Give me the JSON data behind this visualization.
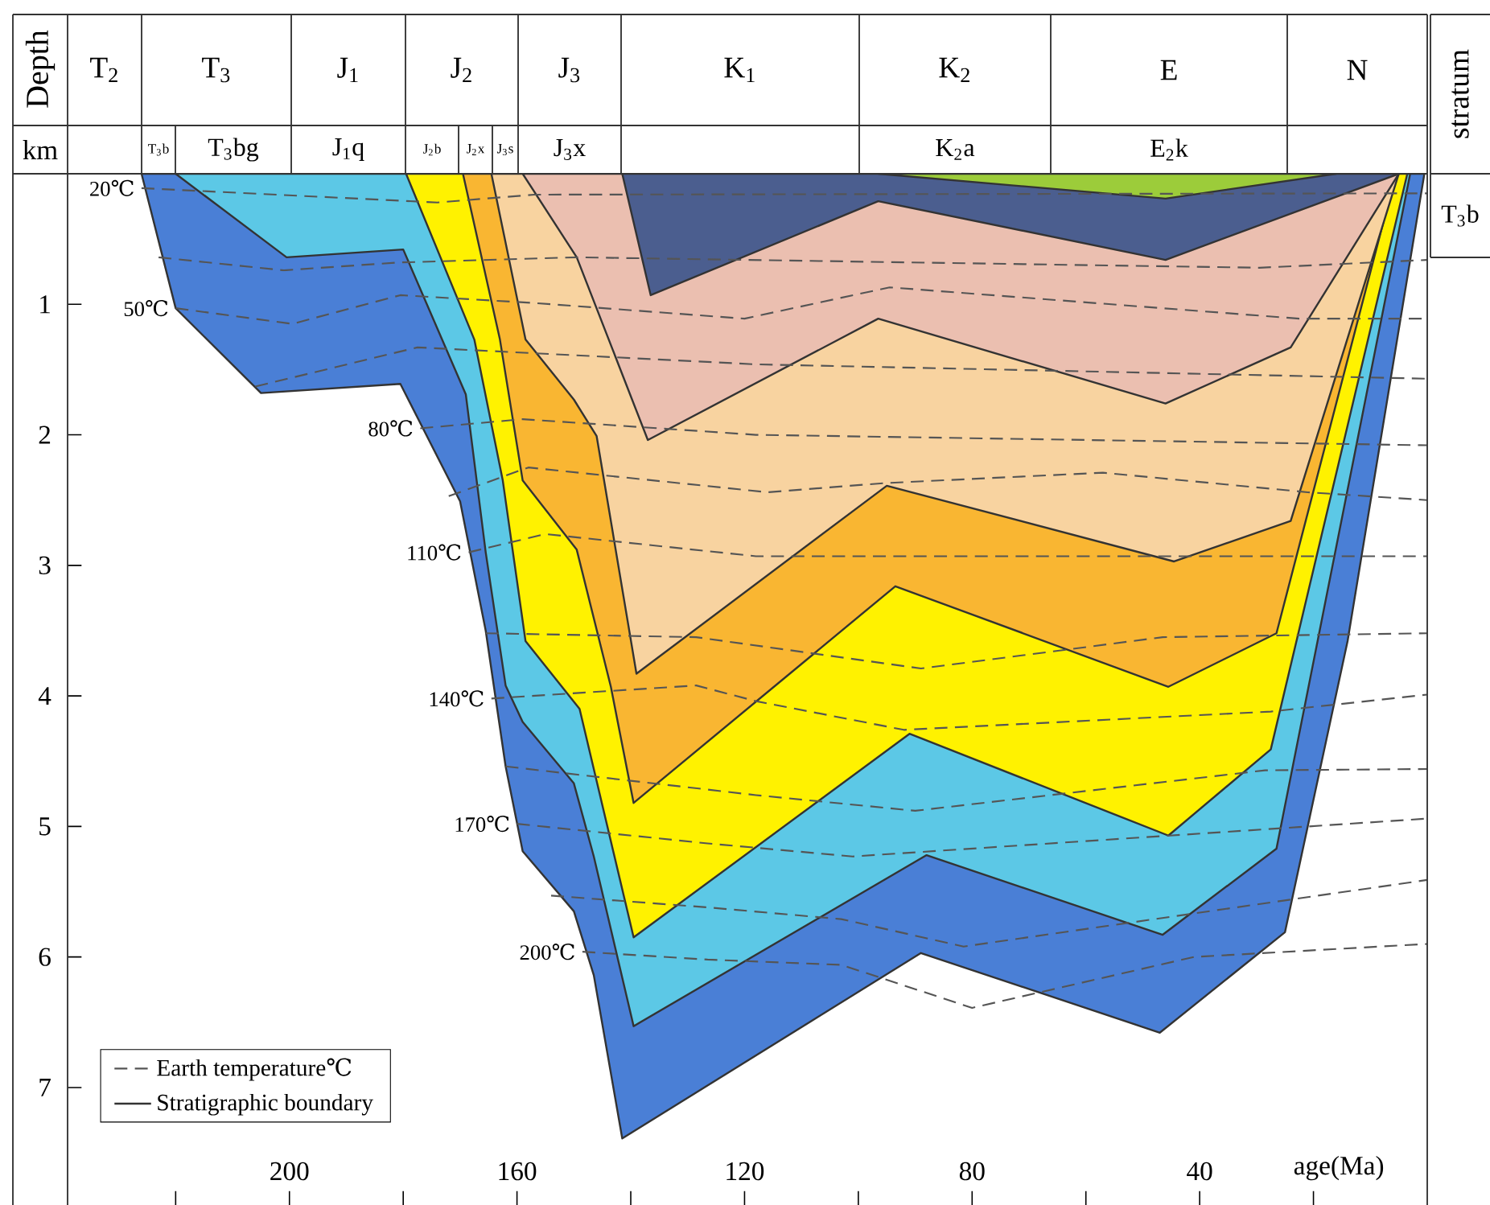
{
  "chart_data": {
    "type": "area",
    "xlabel": "age(Ma)",
    "ylabel": "Depth",
    "xlim": [
      239,
      0
    ],
    "ylim": [
      7.9,
      0
    ],
    "xticks": [
      {
        "value": 220,
        "label": null
      },
      200,
      {
        "value": 180,
        "label": null
      },
      160,
      {
        "value": 140,
        "label": null
      },
      120,
      {
        "value": 100,
        "label": null
      },
      80,
      {
        "value": 60,
        "label": null
      },
      40,
      {
        "value": 20,
        "label": null
      }
    ],
    "yticks": [
      1,
      2,
      3,
      4,
      5,
      6,
      7
    ],
    "legend": "bottom left",
    "marker": "none",
    "series": [
      {
        "color": "#4a7fd6",
        "x": [
          226,
          220,
          205,
          180.5,
          170,
          165.5,
          162,
          159,
          150,
          146.5,
          141.5,
          89,
          47,
          25,
          14,
          0.5
        ],
        "values": [
          0,
          1.03,
          1.68,
          1.61,
          2.51,
          3.5,
          4.54,
          5.19,
          5.65,
          6.14,
          7.39,
          5.97,
          6.58,
          5.81,
          3.58,
          0
        ]
      },
      {
        "color": "#5cc8e6",
        "x": [
          220,
          200.5,
          180,
          169,
          165.5,
          162,
          159,
          150,
          146.5,
          139.5,
          88,
          46.5,
          26.5,
          3
        ],
        "values": [
          0,
          0.64,
          0.58,
          1.69,
          2.9,
          3.92,
          4.2,
          4.67,
          5.23,
          6.53,
          5.22,
          5.83,
          5.17,
          0
        ]
      },
      {
        "color": "#fff200",
        "x": [
          179.5,
          167.5,
          162.5,
          158.5,
          149,
          139.5,
          91,
          45.5,
          27.5,
          3.5
        ],
        "values": [
          0,
          1.27,
          2.35,
          3.58,
          4.1,
          5.85,
          4.29,
          5.07,
          4.41,
          0
        ]
      },
      {
        "color": "#f9b632",
        "x": [
          169.5,
          163,
          159,
          149.5,
          143.5,
          139.5,
          93.5,
          45.5,
          26.5,
          5.5
        ],
        "values": [
          0,
          1.27,
          2.35,
          2.88,
          3.93,
          4.82,
          3.16,
          3.93,
          3.52,
          0
        ]
      },
      {
        "color": "#f8d3a0",
        "x": [
          164.5,
          158.5,
          150,
          146,
          139,
          95,
          44.5,
          24,
          5
        ],
        "values": [
          0,
          1.27,
          1.73,
          2.01,
          3.83,
          2.39,
          2.97,
          2.66,
          0
        ]
      },
      {
        "color": "#ebbfb0",
        "x": [
          159,
          149.5,
          137,
          96.5,
          46,
          24,
          5
        ],
        "values": [
          0,
          0.64,
          2.04,
          1.11,
          1.76,
          1.33,
          0
        ]
      },
      {
        "color": "#4b5e8f",
        "x": [
          141.5,
          136.5,
          96.5,
          46,
          5
        ],
        "values": [
          0,
          0.93,
          0.21,
          0.66,
          0
        ]
      },
      {
        "color": "#9ccc3a",
        "x": [
          96.5,
          46,
          16
        ],
        "values": [
          0,
          0.19,
          0
        ]
      },
      {
        "type": "line",
        "name": "Earth temperature℃",
        "color": "#555555",
        "line_style": "dashed",
        "x": [
          226,
          174,
          157,
          0
        ],
        "values": [
          0.11,
          0.22,
          0.16,
          0.15
        ]
      },
      {
        "type": "line",
        "color": "#555555",
        "line_style": "dashed",
        "x": [
          223,
          201,
          181,
          149.5,
          29.5,
          0
        ],
        "values": [
          0.64,
          0.74,
          0.68,
          0.64,
          0.72,
          0.66
        ]
      },
      {
        "type": "line",
        "color": "#555555",
        "line_style": "dashed",
        "x": [
          220,
          199.5,
          180.5,
          157,
          120,
          94.5,
          22.5,
          0
        ],
        "values": [
          1.03,
          1.15,
          0.93,
          0.99,
          1.11,
          0.87,
          1.11,
          1.11
        ]
      },
      {
        "type": "line",
        "color": "#555555",
        "line_style": "dashed",
        "x": [
          206,
          177.5,
          118,
          0
        ],
        "values": [
          1.63,
          1.33,
          1.46,
          1.57
        ]
      },
      {
        "type": "line",
        "color": "#555555",
        "line_style": "dashed",
        "x": [
          177,
          159,
          118,
          0
        ],
        "values": [
          1.95,
          1.88,
          2.0,
          2.08
        ]
      },
      {
        "type": "line",
        "color": "#555555",
        "line_style": "dashed",
        "x": [
          172,
          158,
          116,
          95.5,
          57,
          21,
          0
        ],
        "values": [
          2.47,
          2.25,
          2.44,
          2.37,
          2.29,
          2.44,
          2.5
        ]
      },
      {
        "type": "line",
        "color": "#555555",
        "line_style": "dashed",
        "x": [
          168.5,
          155,
          118,
          0
        ],
        "values": [
          2.9,
          2.76,
          2.93,
          2.93
        ]
      },
      {
        "type": "line",
        "color": "#555555",
        "line_style": "dashed",
        "x": [
          165.5,
          128.5,
          89,
          46.5,
          0
        ],
        "values": [
          3.52,
          3.55,
          3.79,
          3.55,
          3.52
        ]
      },
      {
        "type": "line",
        "color": "#555555",
        "line_style": "dashed",
        "x": [
          164.5,
          128.5,
          118,
          92,
          27.5,
          0
        ],
        "values": [
          4.02,
          3.92,
          4.04,
          4.26,
          4.12,
          3.99
        ]
      },
      {
        "type": "line",
        "color": "#555555",
        "line_style": "dashed",
        "x": [
          162,
          118,
          90,
          28.5,
          0
        ],
        "values": [
          4.54,
          4.76,
          4.88,
          4.57,
          4.56
        ]
      },
      {
        "type": "line",
        "color": "#555555",
        "line_style": "dashed",
        "x": [
          160,
          126.5,
          101,
          0
        ],
        "values": [
          4.98,
          5.13,
          5.23,
          4.94
        ]
      },
      {
        "type": "line",
        "color": "#555555",
        "line_style": "dashed",
        "x": [
          154,
          126.5,
          103,
          81.5,
          0
        ],
        "values": [
          5.53,
          5.62,
          5.71,
          5.92,
          5.41
        ]
      },
      {
        "type": "line",
        "color": "#555555",
        "line_style": "dashed",
        "x": [
          148.5,
          126.5,
          103,
          80,
          41,
          0
        ],
        "values": [
          5.96,
          6.02,
          6.06,
          6.39,
          6.0,
          5.9
        ]
      }
    ],
    "annotations": [
      "Stratigraphic boundary",
      "km",
      "T$_{2}$",
      "T$_{3}$",
      "J$_{1}$",
      "J$_{2}$",
      "J$_{3}$",
      "K$_{1}$",
      "K$_{2}$",
      "E",
      "N",
      "T$_{3}$b",
      "T$_{3}$bg",
      "J$_{1}$q",
      "J$_{2}$b",
      "J$_{2}$x",
      "J$_{3}$s",
      "J$_{3}$x",
      "K$_{2}$a",
      "E$_{2}$k",
      "stratum",
      "T$_{3}$b",
      {
        "text": "20℃",
        "x": 226,
        "y": 0.11
      },
      {
        "text": "50℃",
        "x": 220,
        "y": 1.03
      },
      {
        "text": "80℃",
        "x": 177,
        "y": 1.95
      },
      {
        "text": "110℃",
        "x": 168.5,
        "y": 2.9
      },
      {
        "text": "140℃",
        "x": 164.5,
        "y": 4.02
      },
      {
        "text": "170℃",
        "x": 160,
        "y": 4.98
      },
      {
        "text": "200℃",
        "x": 148.5,
        "y": 5.96
      }
    ]
  }
}
